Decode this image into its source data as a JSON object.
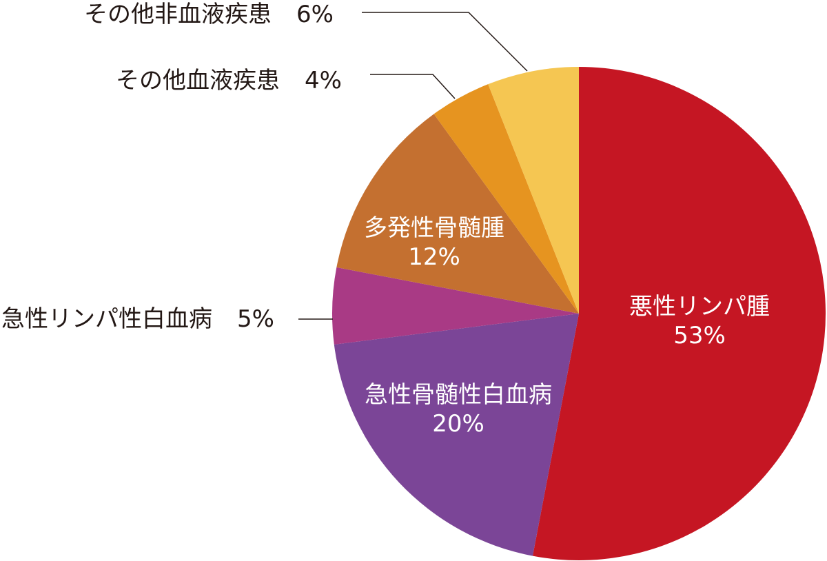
{
  "chart_data": {
    "type": "pie",
    "start": "top",
    "direction": "clockwise",
    "slices": [
      {
        "label": "悪性リンパ腫",
        "value": 53,
        "value_label": "53%",
        "color": "#C51623",
        "label_position": "inside"
      },
      {
        "label": "急性骨髄性白血病",
        "value": 20,
        "value_label": "20%",
        "color": "#7B4597",
        "label_position": "inside"
      },
      {
        "label": "急性リンパ性白血病",
        "value": 5,
        "value_label": "5%",
        "color": "#A93A85",
        "label_position": "outside"
      },
      {
        "label": "多発性骨髄腫",
        "value": 12,
        "value_label": "12%",
        "color": "#C47030",
        "label_position": "inside"
      },
      {
        "label": "その他血液疾患",
        "value": 4,
        "value_label": "4%",
        "color": "#E69420",
        "label_position": "outside"
      },
      {
        "label": "その他非血液疾患",
        "value": 6,
        "value_label": "6%",
        "color": "#F5C652",
        "label_position": "outside"
      }
    ]
  }
}
